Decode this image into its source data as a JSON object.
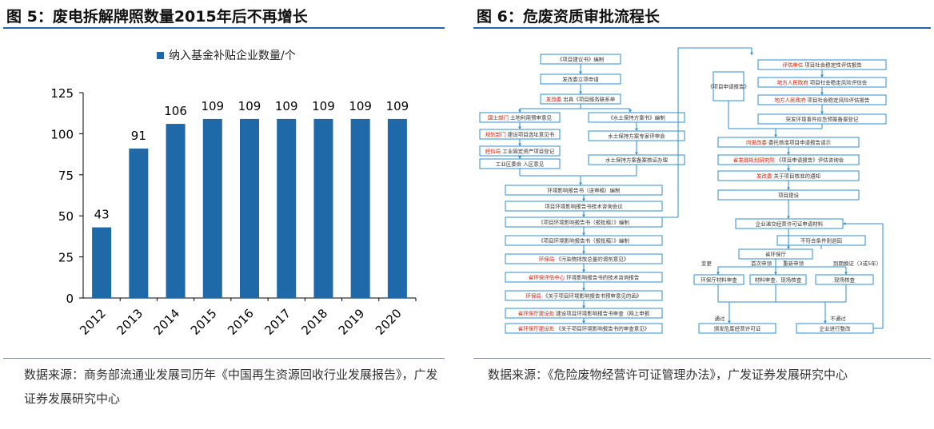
{
  "left_figure": {
    "title": "图 5：废电拆解牌照数量2015年后不再增长",
    "source": "数据来源：商务部流通业发展司历年《中国再生资源回收行业发展报告》，广发证券发展研究中心",
    "bar_color": "#1f69a8"
  },
  "right_figure": {
    "title": "图 6：危废资质审批流程长",
    "source": "数据来源：《危险废物经营许可证管理办法》，广发证券发展研究中心",
    "flow_left": [
      {
        "text": "《项目建议书》编制",
        "red": ""
      },
      {
        "text": "发改委立项申请",
        "red": ""
      },
      {
        "text": "出具《项目服务联系单",
        "red": "发改委"
      },
      {
        "text": "土地利用预审意见",
        "red": "国土部门"
      },
      {
        "text": "建设项目选址意见书",
        "red": "规划部门"
      },
      {
        "text": "工业固定资产项目登记",
        "red": "经信局"
      },
      {
        "text": "工业区委会 入区意见",
        "red": ""
      },
      {
        "text": "《水土保持方案书》编制",
        "red": ""
      },
      {
        "text": "水土保持方案专家评审会",
        "red": ""
      },
      {
        "text": "水土保持方案备案核证办理",
        "red": ""
      },
      {
        "text": "环境影响报告书（送审稿）编制",
        "red": ""
      },
      {
        "text": "项目环境影响报告书技术咨询会议",
        "red": ""
      },
      {
        "text": "《项目环境影响报告书（报批稿）》编制",
        "red": ""
      },
      {
        "text": "《项目环境影响报告书（报批稿）》编制",
        "red": ""
      },
      {
        "text": "《污染物排放总量的调剂意见》",
        "red": "环保局"
      },
      {
        "text": "环境影响报告书的技术咨询报告",
        "red": "省环保评估中心"
      },
      {
        "text": "《关于项目环境影响报告书预审意见的函》",
        "red": "环保局"
      },
      {
        "text": "建设项目环境影响报告书审查（网上申报",
        "red": "省环保厅建设处"
      },
      {
        "text": "《关于项目环境影响报告书的审查意见》",
        "red": "省环保厅建设处"
      }
    ],
    "flow_right": [
      {
        "text": "《项目申请报告》",
        "red": ""
      },
      {
        "text": "项目社会稳定性评估报告",
        "red": "评估单位"
      },
      {
        "text": "项目社会稳定风险评估会",
        "red": "地方人民政府"
      },
      {
        "text": "项目社会稳定风险评估报告",
        "red": "地方人民政府"
      },
      {
        "text": "突发环境事件应急预案备案登记",
        "red": ""
      },
      {
        "text": "委托核准项目申请报告请示",
        "red": "向发改委"
      },
      {
        "text": "《项目申请报告》评估咨询会",
        "red": "省发展规划研究院"
      },
      {
        "text": "关于项目核准的通知",
        "red": "发改委"
      },
      {
        "text": "项目建设",
        "red": ""
      },
      {
        "text": "企业递交经营许可证申请材料",
        "red": ""
      },
      {
        "text": "不符合条件则退回",
        "red": ""
      },
      {
        "text": "省环保厅",
        "red": ""
      },
      {
        "text": "环保厅材料审查",
        "red": ""
      },
      {
        "text": "材料审查、现场核查",
        "red": ""
      },
      {
        "text": "现场核查",
        "red": ""
      },
      {
        "text": "颁发危废经营许可证",
        "red": ""
      },
      {
        "text": "企业进行整改",
        "red": ""
      },
      {
        "text": "变更",
        "red": ""
      },
      {
        "text": "首次申领",
        "red": ""
      },
      {
        "text": "重新申领",
        "red": ""
      },
      {
        "text": "到期换证（3或5年）",
        "red": ""
      },
      {
        "text": "通过",
        "red": ""
      },
      {
        "text": "不通过",
        "red": ""
      }
    ]
  },
  "chart_data": {
    "type": "bar",
    "title": "",
    "legend": "纳入基金补贴企业数量/个",
    "categories": [
      "2012",
      "2013",
      "2014",
      "2015",
      "2016",
      "2017",
      "2018",
      "2019",
      "2020"
    ],
    "values": [
      43,
      91,
      106,
      109,
      109,
      109,
      109,
      109,
      109
    ],
    "yticks": [
      "0",
      "25",
      "50",
      "75",
      "100",
      "125"
    ],
    "ylim": [
      0,
      125
    ],
    "grid": false,
    "data_labels": true
  }
}
